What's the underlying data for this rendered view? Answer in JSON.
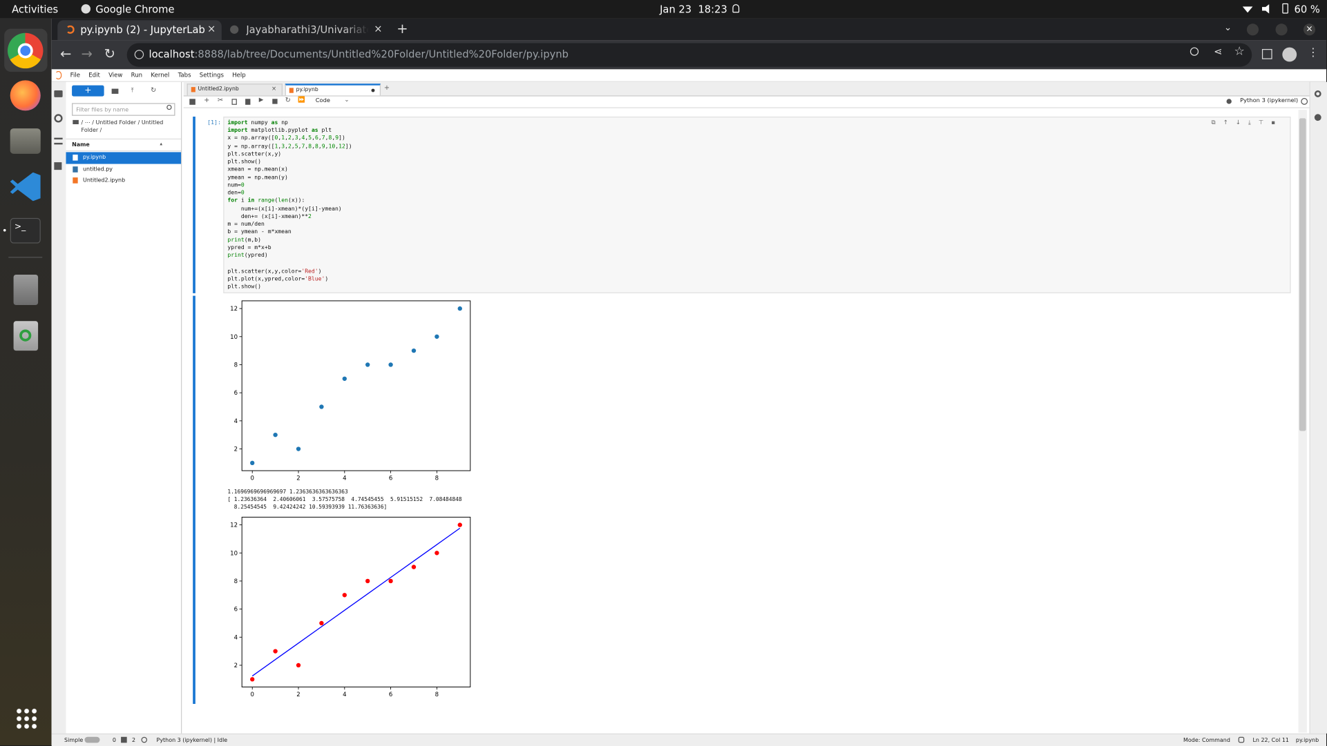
{
  "topbar": {
    "activities": "Activities",
    "app": "Google Chrome",
    "datetime": "Jan 23  18:23",
    "battery": "60 %"
  },
  "browser": {
    "tabs": [
      "py.ipynb (2) - JupyterLab",
      "Jayabharathi3/Univariate"
    ],
    "url_host": "localhost",
    "url_rest": ":8888/lab/tree/Documents/Untitled%20Folder/Untitled%20Folder/py.ipynb"
  },
  "jupyter": {
    "menu": [
      "File",
      "Edit",
      "View",
      "Run",
      "Kernel",
      "Tabs",
      "Settings",
      "Help"
    ],
    "filter_placeholder": "Filter files by name",
    "breadcrumb": "/ ⋯ / Untitled Folder / Untitled Folder /",
    "file_header": "Name",
    "files": [
      "py.ipynb",
      "untitled.py",
      "Untitled2.ipynb"
    ],
    "doc_tabs": [
      "Untitled2.ipynb",
      "py.ipynb"
    ],
    "cell_type": "Code",
    "kernel": "Python 3 (ipykernel)",
    "prompt": "[1]:",
    "code_blocks": [
      [
        "import numpy as np",
        "import matplotlib.pyplot as plt",
        "x = np.array([0,1,2,3,4,5,6,7,8,9])",
        "y = np.array([1,3,2,5,7,8,8,9,10,12])",
        "plt.scatter(x,y)",
        "plt.show()",
        "xmean = np.mean(x)",
        "ymean = np.mean(y)",
        "num=0",
        "den=0",
        "for i in range(len(x)):",
        "    num+=(x[i]-xmean)*(y[i]-ymean)",
        "    den+= (x[i]-xmean)**2",
        "m = num/den",
        "b = ymean - m*xmean",
        "print(m,b)",
        "ypred = m*x+b",
        "print(ypred)"
      ],
      [
        "plt.scatter(x,y,color='Red')",
        "plt.plot(x,ypred,color='Blue')",
        "plt.show()"
      ]
    ],
    "output_text": [
      "1.1696969696969697 1.2363636363636363",
      "[ 1.23636364  2.40606061  3.57575758  4.74545455  5.91515152  7.08484848",
      "  8.25454545  9.42424242 10.59393939 11.76363636]"
    ],
    "status": {
      "mode_label": "Simple",
      "terminals": "0",
      "kernels": "2",
      "kernel_status": "Python 3 (ipykernel) | Idle",
      "mode": "Mode: Command",
      "cursor": "Ln 22, Col 11",
      "file": "py.ipynb"
    }
  },
  "charts": [
    {
      "type": "scatter",
      "x": [
        0,
        1,
        2,
        3,
        4,
        5,
        6,
        7,
        8,
        9
      ],
      "series": [
        {
          "type": "scatter",
          "color": "#1f77b4",
          "values": [
            1,
            3,
            2,
            5,
            7,
            8,
            8,
            9,
            10,
            12
          ]
        }
      ],
      "xlim": [
        -0.45,
        9.45
      ],
      "ylim": [
        0.45,
        12.55
      ],
      "xticks": [
        0,
        2,
        4,
        6,
        8
      ],
      "yticks": [
        2,
        4,
        6,
        8,
        10,
        12
      ]
    },
    {
      "type": "scatter",
      "x": [
        0,
        1,
        2,
        3,
        4,
        5,
        6,
        7,
        8,
        9
      ],
      "series": [
        {
          "type": "scatter",
          "color": "#ff0000",
          "values": [
            1,
            3,
            2,
            5,
            7,
            8,
            8,
            9,
            10,
            12
          ]
        },
        {
          "type": "line",
          "color": "#0000ff",
          "values": [
            1.23636364,
            2.40606061,
            3.57575758,
            4.74545455,
            5.91515152,
            7.08484848,
            8.25454545,
            9.42424242,
            10.59393939,
            11.76363636
          ]
        }
      ],
      "xlim": [
        -0.45,
        9.45
      ],
      "ylim": [
        0.45,
        12.55
      ],
      "xticks": [
        0,
        2,
        4,
        6,
        8
      ],
      "yticks": [
        2,
        4,
        6,
        8,
        10,
        12
      ]
    }
  ]
}
